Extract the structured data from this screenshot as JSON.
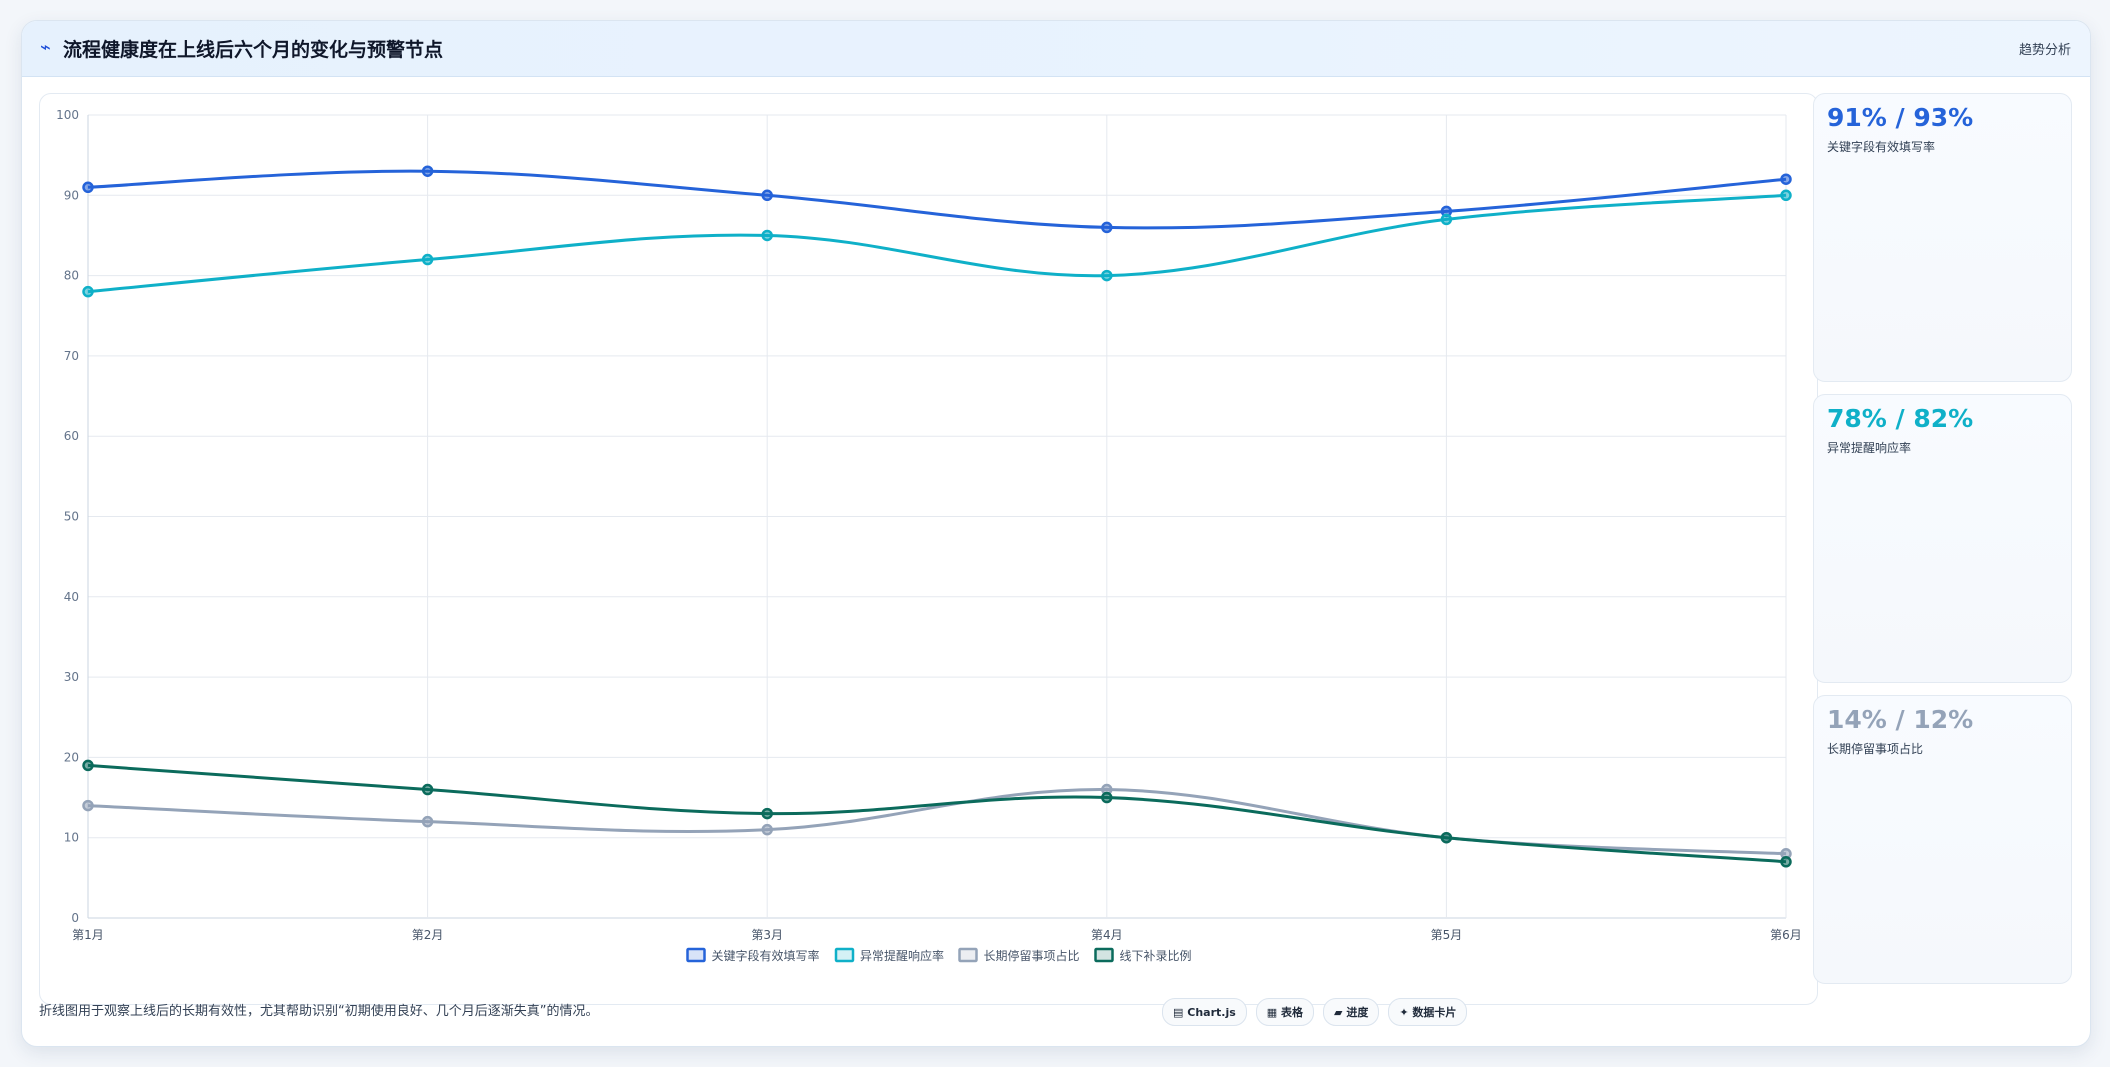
{
  "header": {
    "icon": "⌁",
    "title": "流程健康度在上线后六个月的变化与预警节点",
    "tag": "趋势分析"
  },
  "chart_data": {
    "type": "line",
    "categories": [
      "第1月",
      "第2月",
      "第3月",
      "第4月",
      "第5月",
      "第6月"
    ],
    "series": [
      {
        "name": "关键字段有效填写率",
        "color": "#2563d9",
        "values": [
          91,
          93,
          90,
          86,
          88,
          92
        ]
      },
      {
        "name": "异常提醒响应率",
        "color": "#0fb0c8",
        "values": [
          78,
          82,
          85,
          80,
          87,
          90
        ]
      },
      {
        "name": "长期停留事项占比",
        "color": "#94a3b8",
        "values": [
          14,
          12,
          11,
          16,
          10,
          8
        ]
      },
      {
        "name": "线下补录比例",
        "color": "#0b6b5c",
        "values": [
          19,
          16,
          13,
          15,
          10,
          7
        ]
      }
    ],
    "ylim": [
      0,
      100
    ],
    "yticks": [
      0,
      10,
      20,
      30,
      40,
      50,
      60,
      70,
      80,
      90,
      100
    ],
    "grid": true,
    "legend": "bottom-center"
  },
  "kpis": [
    {
      "value": "91% / 93%",
      "label": "关键字段有效填写率",
      "color": "#2563d9"
    },
    {
      "value": "78% / 82%",
      "label": "异常提醒响应率",
      "color": "#0fb0c8"
    },
    {
      "value": "14% / 12%",
      "label": "长期停留事项占比",
      "color": "#94a3b8"
    }
  ],
  "footer": {
    "note": "折线图用于观察上线后的长期有效性，尤其帮助识别“初期使用良好、几个月后逐渐失真”的情况。",
    "pills": [
      {
        "icon": "▤",
        "label": "Chart.js"
      },
      {
        "icon": "▦",
        "label": "表格"
      },
      {
        "icon": "▰",
        "label": "进度"
      },
      {
        "icon": "✦",
        "label": "数据卡片"
      }
    ]
  }
}
